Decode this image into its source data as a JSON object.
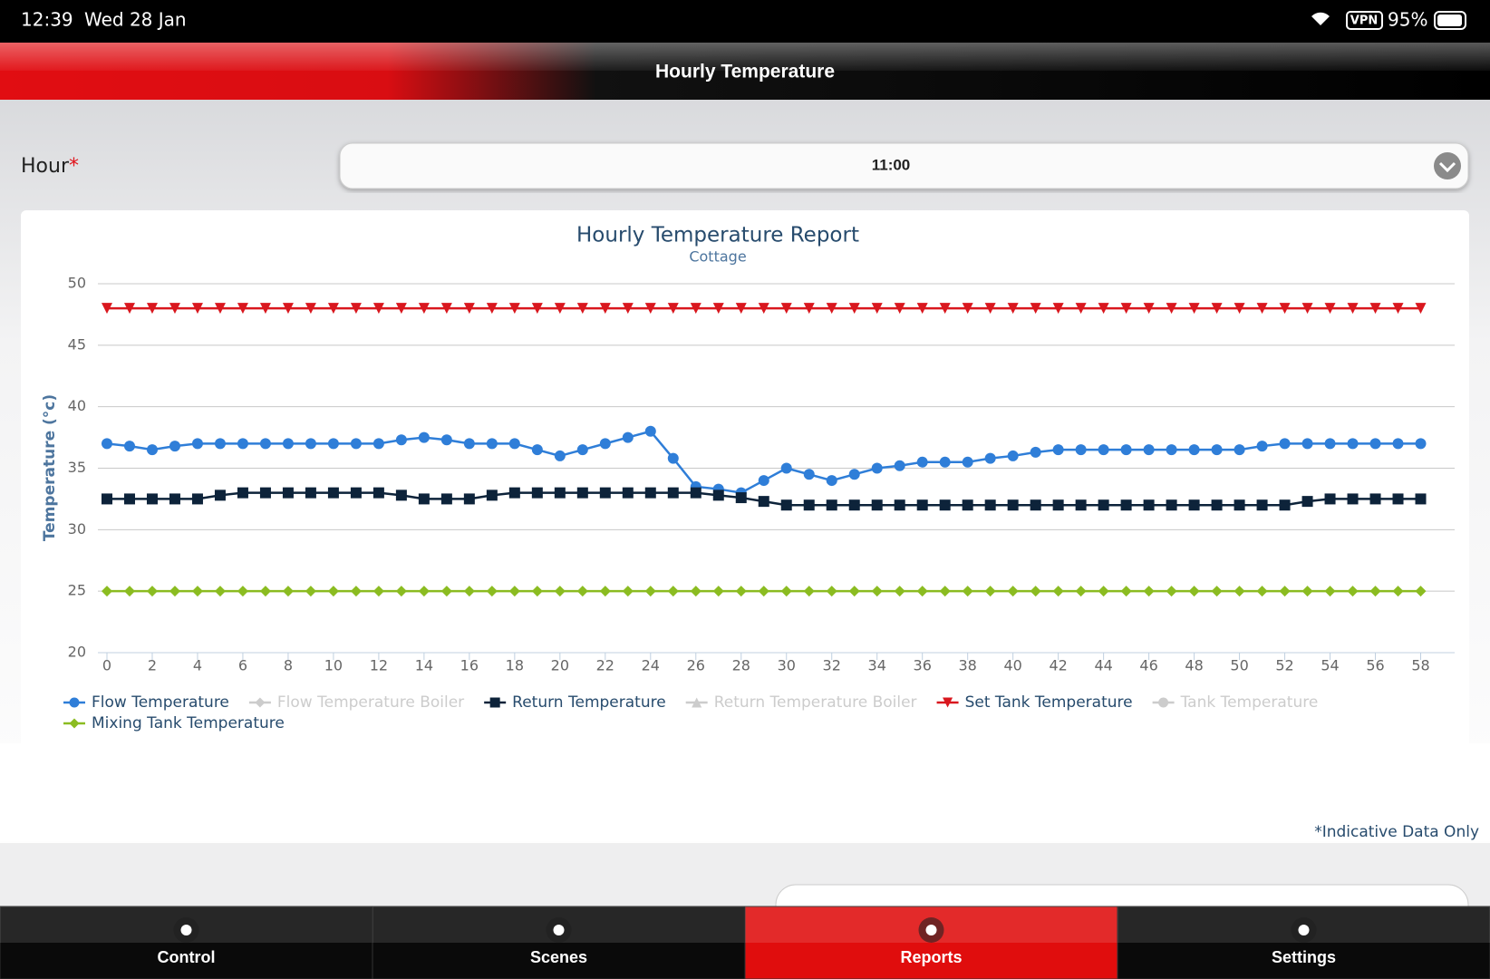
{
  "status_bar": {
    "time": "12:39",
    "date": "Wed 28 Jan",
    "vpn": "VPN",
    "battery": "95%"
  },
  "header": {
    "title": "Hourly Temperature"
  },
  "form": {
    "label": "Hour",
    "required": "*",
    "value": "11:00"
  },
  "chart_data": {
    "type": "line",
    "title": "Hourly Temperature Report",
    "subtitle": "Cottage",
    "y_label": "Temperature (°c)",
    "x": [
      0,
      1,
      2,
      3,
      4,
      5,
      6,
      7,
      8,
      9,
      10,
      11,
      12,
      13,
      14,
      15,
      16,
      17,
      18,
      19,
      20,
      21,
      22,
      23,
      24,
      25,
      26,
      27,
      28,
      29,
      30,
      31,
      32,
      33,
      34,
      35,
      36,
      37,
      38,
      39,
      40,
      41,
      42,
      43,
      44,
      45,
      46,
      47,
      48,
      49,
      50,
      51,
      52,
      53,
      54,
      55,
      56,
      57,
      58
    ],
    "xlim": [
      -0.4,
      59.5
    ],
    "xticks": [
      0,
      2,
      4,
      6,
      8,
      10,
      12,
      14,
      16,
      18,
      20,
      22,
      24,
      26,
      28,
      30,
      32,
      34,
      36,
      38,
      40,
      42,
      44,
      46,
      48,
      50,
      52,
      54,
      56,
      58
    ],
    "ylim": [
      20,
      50
    ],
    "yticks": [
      20,
      25,
      30,
      35,
      40,
      45,
      50
    ],
    "grid": true,
    "series": [
      {
        "name": "Flow Temperature",
        "color": "#2f7ed8",
        "marker": "circle",
        "values": [
          37,
          36.8,
          36.5,
          36.8,
          37,
          37,
          37,
          37,
          37,
          37,
          37,
          37,
          37,
          37.3,
          37.5,
          37.3,
          37,
          37,
          37,
          36.5,
          36,
          36.5,
          37,
          37.5,
          38,
          35.8,
          33.5,
          33.3,
          33,
          34,
          35,
          34.5,
          34,
          34.5,
          35,
          35.2,
          35.5,
          35.5,
          35.5,
          35.8,
          36,
          36.3,
          36.5,
          36.5,
          36.5,
          36.5,
          36.5,
          36.5,
          36.5,
          36.5,
          36.5,
          36.8,
          37,
          37,
          37,
          37,
          37,
          37,
          37
        ]
      },
      {
        "name": "Flow Temperature Boiler",
        "color": "#cccccc",
        "marker": "diamond",
        "visible": false
      },
      {
        "name": "Return Temperature",
        "color": "#0d233a",
        "marker": "square",
        "values": [
          32.5,
          32.5,
          32.5,
          32.5,
          32.5,
          32.8,
          33,
          33,
          33,
          33,
          33,
          33,
          33,
          32.8,
          32.5,
          32.5,
          32.5,
          32.8,
          33,
          33,
          33,
          33,
          33,
          33,
          33,
          33,
          33,
          32.8,
          32.6,
          32.3,
          32,
          32,
          32,
          32,
          32,
          32,
          32,
          32,
          32,
          32,
          32,
          32,
          32,
          32,
          32,
          32,
          32,
          32,
          32,
          32,
          32,
          32,
          32,
          32.3,
          32.5,
          32.5,
          32.5,
          32.5,
          32.5
        ]
      },
      {
        "name": "Return Temperature Boiler",
        "color": "#cccccc",
        "marker": "triangle",
        "visible": false
      },
      {
        "name": "Set Tank Temperature",
        "color": "#d9171e",
        "marker": "triangle-down",
        "values": [
          48,
          48,
          48,
          48,
          48,
          48,
          48,
          48,
          48,
          48,
          48,
          48,
          48,
          48,
          48,
          48,
          48,
          48,
          48,
          48,
          48,
          48,
          48,
          48,
          48,
          48,
          48,
          48,
          48,
          48,
          48,
          48,
          48,
          48,
          48,
          48,
          48,
          48,
          48,
          48,
          48,
          48,
          48,
          48,
          48,
          48,
          48,
          48,
          48,
          48,
          48,
          48,
          48,
          48,
          48,
          48,
          48,
          48,
          48
        ]
      },
      {
        "name": "Tank Temperature",
        "color": "#cccccc",
        "marker": "circle",
        "visible": false
      },
      {
        "name": "Mixing Tank Temperature",
        "color": "#8bbc21",
        "marker": "diamond",
        "values": [
          25,
          25,
          25,
          25,
          25,
          25,
          25,
          25,
          25,
          25,
          25,
          25,
          25,
          25,
          25,
          25,
          25,
          25,
          25,
          25,
          25,
          25,
          25,
          25,
          25,
          25,
          25,
          25,
          25,
          25,
          25,
          25,
          25,
          25,
          25,
          25,
          25,
          25,
          25,
          25,
          25,
          25,
          25,
          25,
          25,
          25,
          25,
          25,
          25,
          25,
          25,
          25,
          25,
          25,
          25,
          25,
          25,
          25,
          25
        ]
      }
    ]
  },
  "note": "*Indicative Data Only",
  "tabs": [
    {
      "label": "Control"
    },
    {
      "label": "Scenes"
    },
    {
      "label": "Reports",
      "active": true
    },
    {
      "label": "Settings"
    }
  ]
}
